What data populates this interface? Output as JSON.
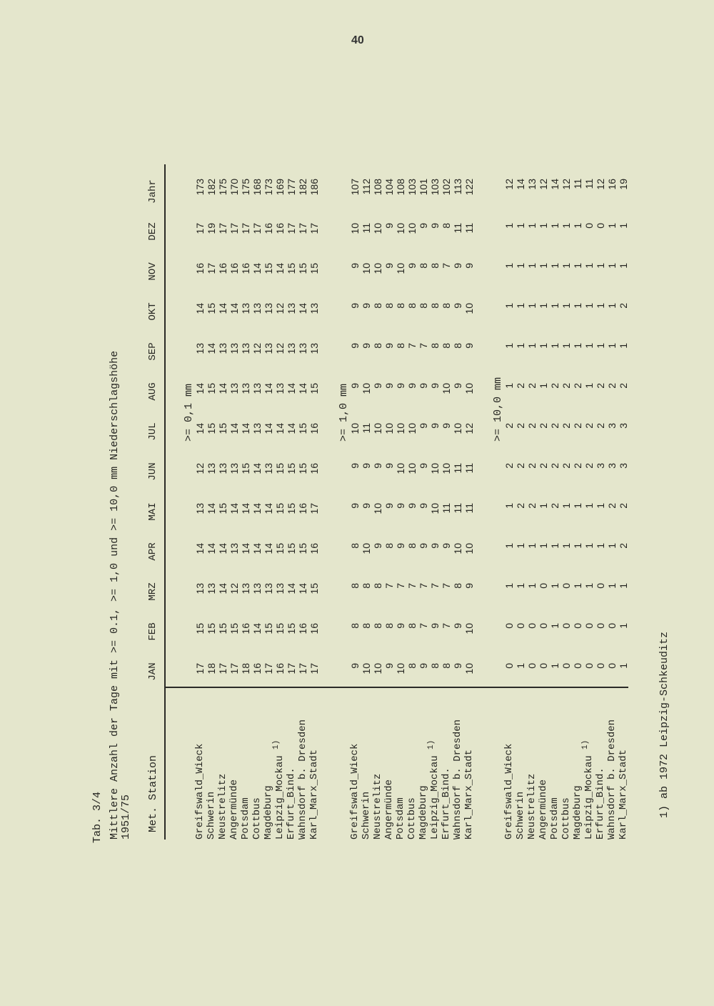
{
  "page_number": "40",
  "table_id": "Tab. 3/4",
  "title": "Mittlere Anzahl der Tage mit >= 0.1, >= 1,0 und >= 10,0 mm Niederschlagshöhe",
  "period": "1951/75",
  "header": {
    "station": "Met. Station",
    "columns": [
      "JAN",
      "FEB",
      "MRZ",
      "APR",
      "MAI",
      "JUN",
      "JUL",
      "AUG",
      "SEP",
      "OKT",
      "NOV",
      "DEZ",
      "Jahr"
    ]
  },
  "stations": [
    "Greifswald_Wieck",
    "Schwerin",
    "Neustrelitz",
    "Angermünde",
    "Potsdam",
    "Cottbus",
    "Magdeburg",
    "Leipzig_Mockau",
    "Erfurt_Bind.",
    "Wahnsdorf b. Dresden",
    "Karl_Marx_Stadt"
  ],
  "footnote_marker": "1)",
  "blocks": [
    {
      "label": ">= 0,1 mm",
      "rows": [
        [
          17,
          15,
          13,
          14,
          13,
          12,
          14,
          14,
          13,
          14,
          16,
          17,
          173
        ],
        [
          18,
          15,
          13,
          14,
          14,
          13,
          15,
          15,
          14,
          15,
          17,
          19,
          182
        ],
        [
          17,
          15,
          14,
          14,
          15,
          13,
          15,
          14,
          13,
          14,
          16,
          17,
          175
        ],
        [
          17,
          15,
          12,
          13,
          14,
          13,
          14,
          13,
          13,
          14,
          16,
          17,
          170
        ],
        [
          18,
          16,
          13,
          14,
          14,
          15,
          14,
          13,
          13,
          13,
          16,
          17,
          175
        ],
        [
          16,
          14,
          13,
          14,
          14,
          14,
          13,
          13,
          12,
          13,
          14,
          17,
          168
        ],
        [
          17,
          15,
          13,
          14,
          14,
          13,
          14,
          14,
          13,
          13,
          15,
          16,
          173
        ],
        [
          16,
          15,
          13,
          15,
          15,
          15,
          14,
          13,
          12,
          12,
          14,
          16,
          169
        ],
        [
          17,
          15,
          14,
          15,
          15,
          15,
          14,
          14,
          13,
          13,
          15,
          17,
          177
        ],
        [
          17,
          16,
          14,
          15,
          16,
          15,
          15,
          14,
          13,
          14,
          15,
          17,
          182
        ],
        [
          17,
          16,
          15,
          16,
          17,
          16,
          16,
          15,
          13,
          13,
          15,
          17,
          186
        ]
      ]
    },
    {
      "label": ">= 1,0 mm",
      "rows": [
        [
          9,
          8,
          8,
          8,
          9,
          9,
          10,
          9,
          9,
          9,
          9,
          10,
          107
        ],
        [
          10,
          8,
          8,
          10,
          9,
          9,
          11,
          10,
          9,
          9,
          10,
          11,
          112
        ],
        [
          10,
          8,
          8,
          9,
          10,
          9,
          10,
          9,
          8,
          8,
          10,
          10,
          108
        ],
        [
          9,
          8,
          7,
          8,
          9,
          9,
          10,
          9,
          9,
          8,
          9,
          9,
          104
        ],
        [
          10,
          9,
          7,
          9,
          9,
          10,
          10,
          9,
          8,
          8,
          10,
          10,
          108
        ],
        [
          8,
          8,
          7,
          8,
          9,
          10,
          10,
          9,
          7,
          8,
          9,
          10,
          103
        ],
        [
          9,
          7,
          7,
          9,
          9,
          9,
          9,
          9,
          7,
          8,
          8,
          9,
          101
        ],
        [
          8,
          9,
          7,
          9,
          10,
          10,
          9,
          9,
          8,
          8,
          8,
          9,
          103
        ],
        [
          8,
          7,
          7,
          9,
          11,
          10,
          9,
          10,
          8,
          8,
          7,
          8,
          102
        ],
        [
          9,
          9,
          8,
          10,
          11,
          11,
          10,
          9,
          8,
          9,
          9,
          11,
          113
        ],
        [
          10,
          10,
          9,
          10,
          11,
          11,
          12,
          10,
          9,
          10,
          9,
          11,
          122
        ]
      ]
    },
    {
      "label": ">= 10,0 mm",
      "rows": [
        [
          0,
          0,
          1,
          1,
          1,
          2,
          2,
          1,
          1,
          1,
          1,
          1,
          12
        ],
        [
          1,
          0,
          1,
          1,
          2,
          2,
          2,
          2,
          1,
          1,
          1,
          1,
          14
        ],
        [
          0,
          0,
          1,
          1,
          2,
          2,
          2,
          2,
          1,
          1,
          1,
          1,
          13
        ],
        [
          0,
          0,
          0,
          1,
          1,
          2,
          2,
          1,
          1,
          1,
          1,
          1,
          12
        ],
        [
          1,
          1,
          1,
          1,
          2,
          2,
          2,
          2,
          1,
          1,
          1,
          1,
          14
        ],
        [
          0,
          0,
          0,
          1,
          1,
          2,
          2,
          2,
          1,
          1,
          1,
          1,
          12
        ],
        [
          0,
          0,
          1,
          1,
          1,
          2,
          2,
          2,
          1,
          1,
          1,
          1,
          11
        ],
        [
          0,
          0,
          1,
          1,
          1,
          2,
          2,
          1,
          1,
          1,
          1,
          0,
          11
        ],
        [
          0,
          0,
          0,
          1,
          1,
          3,
          2,
          2,
          1,
          1,
          1,
          0,
          12
        ],
        [
          0,
          0,
          1,
          1,
          2,
          3,
          3,
          2,
          1,
          1,
          1,
          1,
          16
        ],
        [
          1,
          1,
          1,
          2,
          2,
          3,
          3,
          2,
          1,
          2,
          1,
          1,
          19
        ]
      ]
    }
  ],
  "footnote": "1) ab 1972 Leipzig-Schkeuditz"
}
